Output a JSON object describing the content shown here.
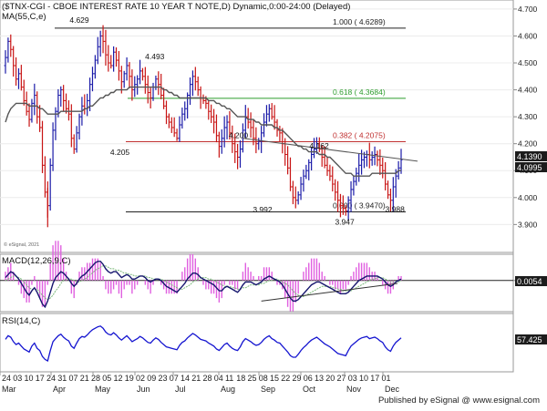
{
  "main_title": "($TNX-CGI - CBOE INTEREST RATE 10 YEAR T NOTE,D) Dynamic,0:00-24:00 (Delayed)",
  "ma_label": "MA(55,C,e)",
  "macd_label": "MACD(12,26,9,C)",
  "rsi_label": "RSI(14,C)",
  "copyright": "© eSignal, 2021",
  "credit": "Published by eSignal @ www.esignal.com",
  "colors": {
    "up_bar": "#1a1aa8",
    "down_bar": "#c81414",
    "ma_line": "#555555",
    "fib_top": "#222222",
    "fib_618": "#2e9e2e",
    "fib_382": "#c03030",
    "fib_bottom": "#222222",
    "trendline": "#555555",
    "macd_line": "#16166e",
    "signal_line": "#7ab87a",
    "histogram": "#e060e0",
    "rsi_line": "#1515d0",
    "price_tag_bg": "#1c1c1c",
    "price_tag_text": "#ffffff"
  },
  "price_tag_last": "4.1390",
  "price_tag_ma": "4.0995",
  "macd_tag": "0.0054",
  "rsi_tag": "57.425",
  "chart_data": [
    {
      "type": "bar",
      "title": "($TNX-CGI - CBOE INTEREST RATE 10 YEAR T NOTE,D) Dynamic,0:00-24:00 (Delayed)",
      "description_series": "Daily OHLC bars with 55-day EMA; price levels in percent yield",
      "ylim": [
        3.82,
        4.72
      ],
      "y_ticks": [
        "3.900",
        "4.000",
        "4.100",
        "4.200",
        "4.300",
        "4.400",
        "4.500",
        "4.600",
        "4.700"
      ],
      "x_date_labels": [
        "24",
        "03",
        "10",
        "17",
        "24",
        "31",
        "07",
        "21",
        "28",
        "05",
        "12",
        "19",
        "02",
        "09",
        "23",
        "07",
        "14",
        "21",
        "28",
        "04",
        "11",
        "18",
        "25",
        "08",
        "15",
        "22",
        "29",
        "06",
        "13",
        "20",
        "27",
        "03",
        "10",
        "17",
        "01"
      ],
      "x_month_labels": [
        "Mar",
        "Apr",
        "May",
        "Jun",
        "Jul",
        "Aug",
        "Sep",
        "Oct",
        "Nov",
        "Dec"
      ],
      "fib_levels": [
        {
          "label": "1.000 ( 4.6289)",
          "value": 4.6289
        },
        {
          "label": "0.618 ( 4.3684)",
          "value": 4.3684
        },
        {
          "label": "0.382 ( 4.2075)",
          "value": 4.2075
        },
        {
          "label": "0.000 ( 3.9470)",
          "value": 3.947
        }
      ],
      "annotations": [
        {
          "text": "4.629",
          "value": 4.629
        },
        {
          "text": "4.493",
          "value": 4.493
        },
        {
          "text": "4.205",
          "value": 4.205
        },
        {
          "text": "4.200",
          "value": 4.2
        },
        {
          "text": "4.162",
          "value": 4.162
        },
        {
          "text": "3.992",
          "value": 3.992
        },
        {
          "text": "3.947",
          "value": 3.947
        },
        {
          "text": "3.988",
          "value": 3.988
        }
      ],
      "closes": [
        4.52,
        4.58,
        4.55,
        4.49,
        4.44,
        4.46,
        4.41,
        4.36,
        4.32,
        4.29,
        4.35,
        4.38,
        4.3,
        4.26,
        4.12,
        4.02,
        3.97,
        4.12,
        4.25,
        4.32,
        4.38,
        4.4,
        4.36,
        4.33,
        4.31,
        4.22,
        4.18,
        4.24,
        4.3,
        4.34,
        4.33,
        4.36,
        4.42,
        4.46,
        4.51,
        4.56,
        4.6,
        4.58,
        4.53,
        4.5,
        4.49,
        4.54,
        4.51,
        4.47,
        4.43,
        4.46,
        4.49,
        4.45,
        4.4,
        4.42,
        4.44,
        4.47,
        4.45,
        4.42,
        4.39,
        4.37,
        4.41,
        4.44,
        4.42,
        4.38,
        4.34,
        4.3,
        4.28,
        4.26,
        4.24,
        4.22,
        4.27,
        4.31,
        4.33,
        4.38,
        4.42,
        4.45,
        4.43,
        4.4,
        4.37,
        4.36,
        4.35,
        4.32,
        4.3,
        4.28,
        4.23,
        4.19,
        4.22,
        4.26,
        4.28,
        4.24,
        4.2,
        4.17,
        4.15,
        4.18,
        4.25,
        4.3,
        4.28,
        4.26,
        4.22,
        4.2,
        4.21,
        4.24,
        4.28,
        4.31,
        4.33,
        4.3,
        4.28,
        4.25,
        4.24,
        4.2,
        4.16,
        4.11,
        4.04,
        4.0,
        3.99,
        4.01,
        4.05,
        4.08,
        4.1,
        4.13,
        4.16,
        4.18,
        4.2,
        4.18,
        4.15,
        4.12,
        4.1,
        4.08,
        4.05,
        4.02,
        3.99,
        3.97,
        3.96,
        3.95,
        3.99,
        4.03,
        4.06,
        4.09,
        4.12,
        4.14,
        4.15,
        4.16,
        4.14,
        4.15,
        4.16,
        4.14,
        4.12,
        4.1,
        4.05,
        4.01,
        3.99,
        4.04,
        4.08,
        4.11,
        4.14
      ],
      "ma55": [
        4.28,
        4.31,
        4.33,
        4.34,
        4.35,
        4.35,
        4.35,
        4.35,
        4.35,
        4.34,
        4.34,
        4.34,
        4.34,
        4.33,
        4.33,
        4.32,
        4.31,
        4.31,
        4.31,
        4.31,
        4.31,
        4.32,
        4.32,
        4.32,
        4.32,
        4.32,
        4.32,
        4.32,
        4.32,
        4.32,
        4.33,
        4.33,
        4.34,
        4.34,
        4.35,
        4.36,
        4.37,
        4.37,
        4.38,
        4.38,
        4.39,
        4.39,
        4.4,
        4.4,
        4.4,
        4.4,
        4.4,
        4.41,
        4.41,
        4.41,
        4.41,
        4.41,
        4.41,
        4.41,
        4.41,
        4.41,
        4.41,
        4.41,
        4.41,
        4.41,
        4.4,
        4.4,
        4.39,
        4.39,
        4.38,
        4.38,
        4.37,
        4.37,
        4.37,
        4.37,
        4.37,
        4.37,
        4.37,
        4.37,
        4.37,
        4.37,
        4.37,
        4.36,
        4.36,
        4.36,
        4.35,
        4.35,
        4.34,
        4.34,
        4.33,
        4.33,
        4.32,
        4.31,
        4.3,
        4.3,
        4.3,
        4.3,
        4.29,
        4.29,
        4.29,
        4.28,
        4.28,
        4.27,
        4.27,
        4.27,
        4.27,
        4.27,
        4.26,
        4.26,
        4.25,
        4.25,
        4.24,
        4.23,
        4.22,
        4.21,
        4.2,
        4.19,
        4.19,
        4.18,
        4.18,
        4.17,
        4.17,
        4.17,
        4.17,
        4.16,
        4.16,
        4.16,
        4.15,
        4.15,
        4.14,
        4.13,
        4.12,
        4.11,
        4.1,
        4.09,
        4.09,
        4.09,
        4.08,
        4.08,
        4.08,
        4.08,
        4.08,
        4.08,
        4.08,
        4.09,
        4.09,
        4.09,
        4.09,
        4.09,
        4.09,
        4.09,
        4.09,
        4.09,
        4.09,
        4.1,
        4.1
      ]
    },
    {
      "type": "line",
      "title": "MACD(12,26,9,C)",
      "series": [
        {
          "name": "MACD",
          "values": [
            0.02,
            0.04,
            0.06,
            0.05,
            0.03,
            0.01,
            -0.02,
            -0.05,
            -0.08,
            -0.1,
            -0.07,
            -0.05,
            -0.08,
            -0.12,
            -0.16,
            -0.18,
            -0.14,
            -0.08,
            -0.02,
            0.02,
            0.04,
            0.06,
            0.05,
            0.03,
            0.01,
            -0.02,
            -0.04,
            -0.02,
            0.01,
            0.03,
            0.04,
            0.06,
            0.08,
            0.1,
            0.12,
            0.13,
            0.13,
            0.11,
            0.08,
            0.06,
            0.05,
            0.06,
            0.06,
            0.04,
            0.02,
            0.03,
            0.04,
            0.03,
            0.01,
            0.01,
            0.02,
            0.03,
            0.03,
            0.02,
            0.0,
            -0.01,
            0.0,
            0.01,
            0.01,
            0.0,
            -0.02,
            -0.04,
            -0.05,
            -0.06,
            -0.07,
            -0.08,
            -0.06,
            -0.04,
            -0.02,
            0.01,
            0.03,
            0.05,
            0.05,
            0.04,
            0.02,
            0.01,
            0.0,
            -0.01,
            -0.02,
            -0.03,
            -0.05,
            -0.07,
            -0.07,
            -0.05,
            -0.04,
            -0.05,
            -0.06,
            -0.07,
            -0.08,
            -0.06,
            -0.03,
            -0.01,
            -0.01,
            -0.01,
            -0.02,
            -0.03,
            -0.02,
            -0.01,
            0.01,
            0.02,
            0.03,
            0.02,
            0.01,
            0.0,
            -0.01,
            -0.03,
            -0.06,
            -0.09,
            -0.12,
            -0.14,
            -0.14,
            -0.13,
            -0.11,
            -0.09,
            -0.07,
            -0.05,
            -0.03,
            -0.02,
            -0.01,
            -0.01,
            -0.02,
            -0.03,
            -0.04,
            -0.05,
            -0.06,
            -0.07,
            -0.08,
            -0.09,
            -0.09,
            -0.09,
            -0.08,
            -0.06,
            -0.04,
            -0.02,
            0.0,
            0.01,
            0.02,
            0.03,
            0.03,
            0.03,
            0.03,
            0.03,
            0.02,
            0.01,
            -0.01,
            -0.03,
            -0.04,
            -0.03,
            -0.01,
            0.0,
            0.01
          ]
        },
        {
          "name": "Signal",
          "values": [
            0.0,
            0.01,
            0.02,
            0.03,
            0.03,
            0.02,
            0.01,
            -0.01,
            -0.03,
            -0.05,
            -0.06,
            -0.06,
            -0.06,
            -0.08,
            -0.1,
            -0.12,
            -0.13,
            -0.12,
            -0.1,
            -0.07,
            -0.05,
            -0.02,
            0.0,
            0.01,
            0.01,
            0.01,
            0.0,
            -0.01,
            -0.01,
            0.0,
            0.01,
            0.02,
            0.04,
            0.05,
            0.07,
            0.08,
            0.09,
            0.1,
            0.1,
            0.09,
            0.08,
            0.08,
            0.07,
            0.07,
            0.06,
            0.05,
            0.05,
            0.04,
            0.04,
            0.03,
            0.03,
            0.03,
            0.03,
            0.03,
            0.02,
            0.02,
            0.01,
            0.01,
            0.01,
            0.01,
            0.0,
            -0.01,
            -0.02,
            -0.03,
            -0.04,
            -0.05,
            -0.06,
            -0.06,
            -0.05,
            -0.04,
            -0.03,
            -0.01,
            0.0,
            0.01,
            0.02,
            0.02,
            0.02,
            0.01,
            0.01,
            0.0,
            -0.01,
            -0.02,
            -0.03,
            -0.04,
            -0.04,
            -0.04,
            -0.05,
            -0.05,
            -0.06,
            -0.06,
            -0.05,
            -0.05,
            -0.04,
            -0.03,
            -0.03,
            -0.03,
            -0.03,
            -0.02,
            -0.02,
            -0.01,
            0.0,
            0.0,
            0.01,
            0.01,
            0.0,
            -0.01,
            -0.02,
            -0.03,
            -0.05,
            -0.07,
            -0.09,
            -0.1,
            -0.11,
            -0.11,
            -0.1,
            -0.09,
            -0.08,
            -0.07,
            -0.06,
            -0.05,
            -0.04,
            -0.04,
            -0.04,
            -0.04,
            -0.05,
            -0.05,
            -0.06,
            -0.06,
            -0.07,
            -0.07,
            -0.07,
            -0.07,
            -0.06,
            -0.05,
            -0.04,
            -0.03,
            -0.02,
            -0.01,
            0.0,
            0.01,
            0.01,
            0.02,
            0.02,
            0.02,
            0.01,
            0.0,
            -0.01,
            -0.01,
            -0.01,
            -0.01,
            0.0
          ]
        }
      ],
      "tag_value": "0.0054"
    },
    {
      "type": "line",
      "title": "RSI(14,C)",
      "series": [
        {
          "name": "RSI",
          "values": [
            55,
            60,
            58,
            52,
            48,
            50,
            46,
            42,
            40,
            38,
            46,
            50,
            43,
            40,
            32,
            28,
            26,
            40,
            52,
            56,
            60,
            62,
            58,
            55,
            53,
            46,
            43,
            50,
            56,
            59,
            58,
            61,
            65,
            68,
            70,
            72,
            73,
            70,
            65,
            62,
            61,
            64,
            61,
            57,
            54,
            57,
            60,
            56,
            52,
            54,
            56,
            59,
            57,
            54,
            51,
            50,
            54,
            57,
            55,
            51,
            48,
            45,
            44,
            43,
            42,
            41,
            47,
            51,
            53,
            57,
            60,
            63,
            61,
            58,
            55,
            54,
            53,
            50,
            48,
            46,
            42,
            40,
            44,
            48,
            50,
            46,
            43,
            41,
            40,
            45,
            52,
            56,
            54,
            52,
            49,
            47,
            48,
            51,
            55,
            58,
            60,
            56,
            54,
            51,
            50,
            46,
            42,
            38,
            33,
            31,
            31,
            35,
            40,
            44,
            47,
            51,
            54,
            56,
            58,
            55,
            52,
            49,
            47,
            45,
            42,
            39,
            36,
            35,
            34,
            33,
            40,
            46,
            49,
            52,
            55,
            57,
            58,
            59,
            56,
            57,
            58,
            56,
            53,
            51,
            45,
            41,
            39,
            46,
            51,
            54,
            57
          ]
        }
      ],
      "tag_value": "57.425"
    }
  ]
}
